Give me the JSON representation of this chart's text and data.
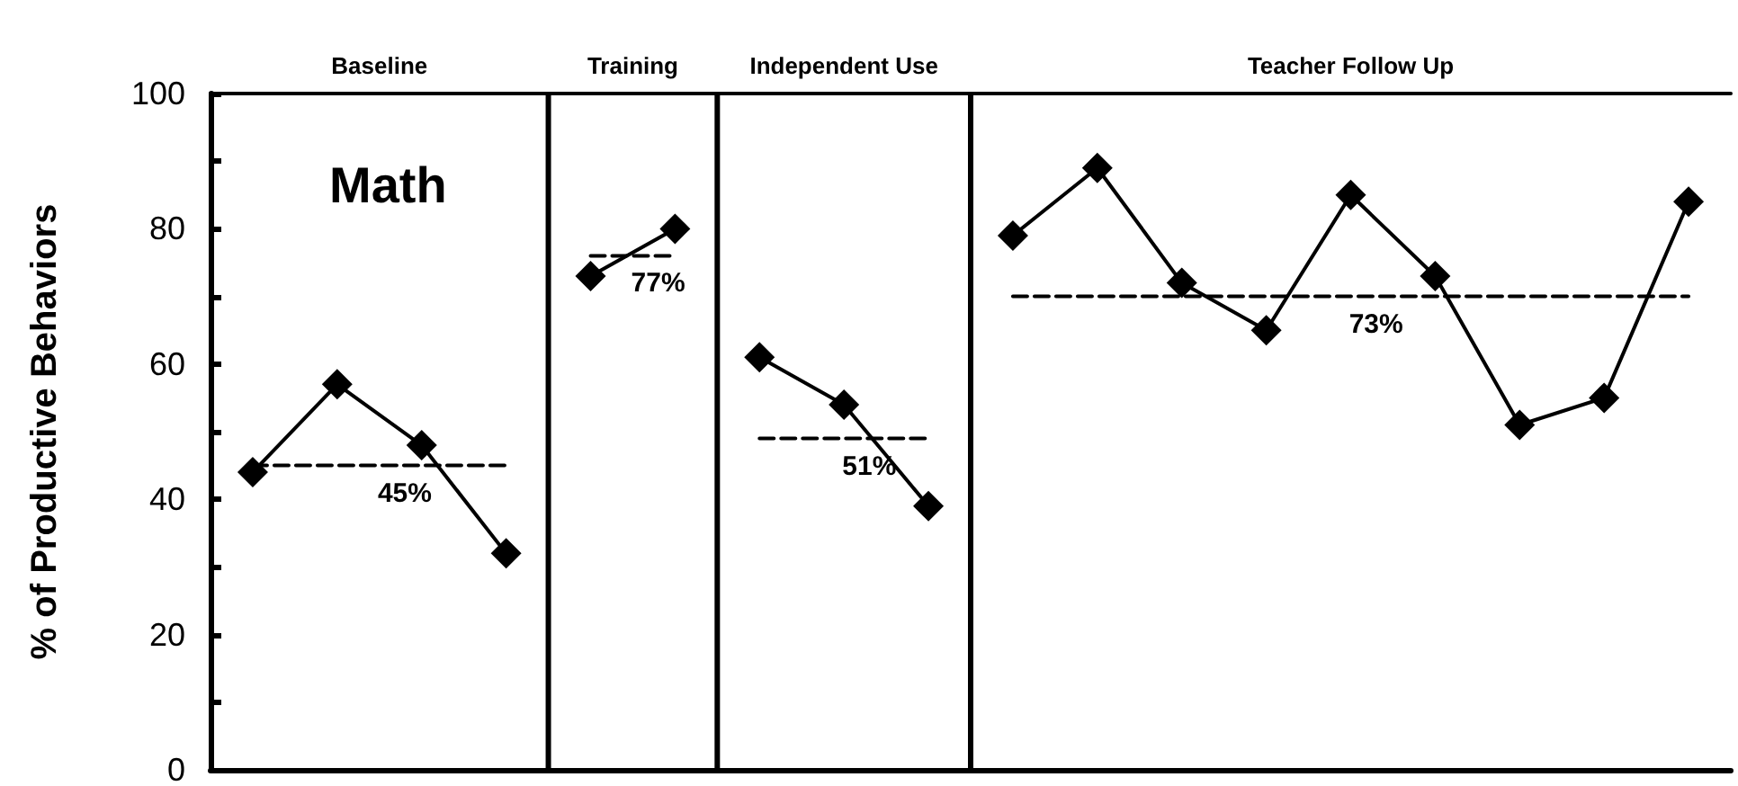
{
  "chart_data": {
    "type": "line",
    "title": "Math",
    "ylabel": "% of Productive Behaviors",
    "categories": [
      null,
      null,
      null,
      null,
      null,
      null,
      null,
      null,
      null,
      null,
      null,
      null,
      null,
      null,
      null,
      null,
      null,
      null
    ],
    "ylim": [
      0,
      100
    ],
    "yticks": [
      0,
      {
        "value": 10,
        "label": null
      },
      20,
      {
        "value": 30,
        "label": null
      },
      40,
      {
        "value": 50,
        "label": null
      },
      60,
      {
        "value": 70,
        "label": null
      },
      80,
      {
        "value": 90,
        "label": null
      },
      100
    ],
    "tick_labels": "y",
    "grid": false,
    "marker": "diamond",
    "line_style": "solid",
    "series": [
      {
        "color": "#000000",
        "values": [
          44,
          57,
          48,
          32,
          null,
          null,
          null,
          null,
          null,
          null,
          null,
          null,
          null,
          null,
          null,
          null,
          null,
          null
        ]
      },
      {
        "color": "#000000",
        "values": [
          null,
          null,
          null,
          null,
          73,
          80,
          null,
          null,
          null,
          null,
          null,
          null,
          null,
          null,
          null,
          null,
          null,
          null
        ]
      },
      {
        "color": "#000000",
        "values": [
          null,
          null,
          null,
          null,
          null,
          null,
          61,
          54,
          39,
          null,
          null,
          null,
          null,
          null,
          null,
          null,
          null,
          null
        ]
      },
      {
        "color": "#000000",
        "values": [
          null,
          null,
          null,
          null,
          null,
          null,
          null,
          null,
          null,
          79,
          89,
          72,
          65,
          85,
          73,
          51,
          55,
          84
        ]
      },
      {
        "color": "#000000",
        "marker": "none",
        "line_style": "dashed",
        "values": [
          45,
          45,
          45,
          45,
          null,
          null,
          null,
          null,
          null,
          null,
          null,
          null,
          null,
          null,
          null,
          null,
          null,
          null
        ]
      },
      {
        "color": "#000000",
        "marker": "none",
        "line_style": "dashed",
        "values": [
          null,
          null,
          null,
          null,
          76,
          76,
          null,
          null,
          null,
          null,
          null,
          null,
          null,
          null,
          null,
          null,
          null,
          null
        ]
      },
      {
        "color": "#000000",
        "marker": "none",
        "line_style": "dashed",
        "values": [
          null,
          null,
          null,
          null,
          null,
          null,
          49,
          49,
          49,
          null,
          null,
          null,
          null,
          null,
          null,
          null,
          null,
          null
        ]
      },
      {
        "color": "#000000",
        "marker": "none",
        "line_style": "dashed",
        "values": [
          null,
          null,
          null,
          null,
          null,
          null,
          null,
          null,
          null,
          70,
          70,
          70,
          70,
          70,
          70,
          70,
          70,
          70
        ]
      }
    ],
    "annotations": [
      "Baseline",
      "Training",
      "Independent Use",
      "Teacher Follow Up",
      {
        "text": "45%",
        "y": 45
      },
      {
        "text": "77%",
        "y": 76
      },
      {
        "text": "51%",
        "y": 49
      },
      {
        "text": "73%",
        "y": 70
      }
    ]
  }
}
